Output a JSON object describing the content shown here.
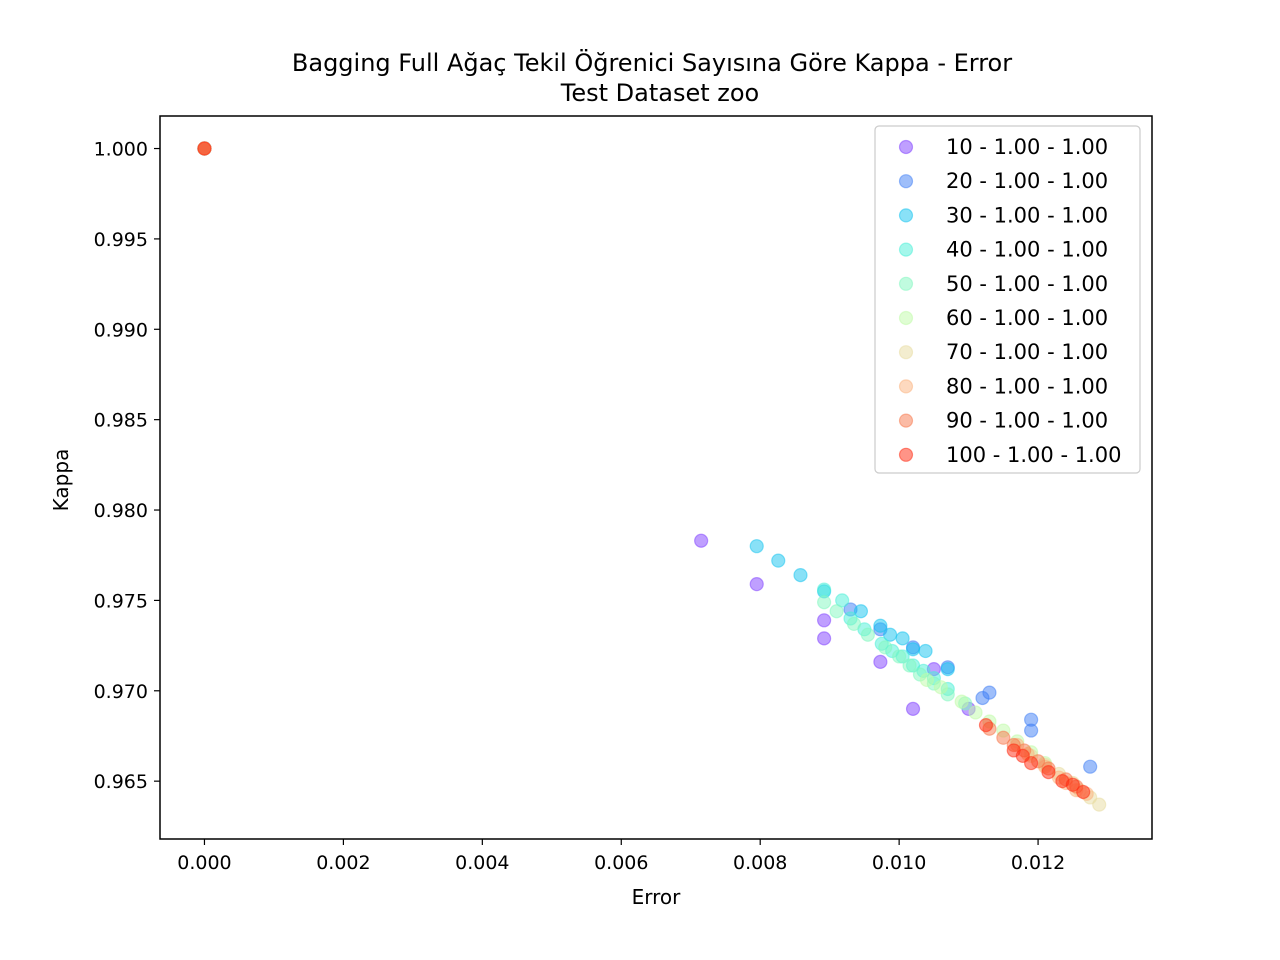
{
  "chart_data": {
    "type": "scatter",
    "title": "Bagging Full Ağaç Tekil Öğrenici Sayısına Göre Kappa - Error",
    "subtitle": "Test Dataset  zoo",
    "xlabel": "Error",
    "ylabel": "Kappa",
    "xlim": [
      -0.00064,
      0.01364
    ],
    "ylim": [
      0.9618,
      1.0018
    ],
    "x_ticks": [
      "0.000",
      "0.002",
      "0.004",
      "0.006",
      "0.008",
      "0.010",
      "0.012"
    ],
    "y_ticks": [
      "0.965",
      "0.970",
      "0.975",
      "0.980",
      "0.985",
      "0.990",
      "0.995",
      "1.000"
    ],
    "grid": false,
    "legend_position": "top-right",
    "series": [
      {
        "name": "10 - 1.00 - 1.00",
        "color": "#8040ff",
        "points": [
          [
            0.0,
            1.0
          ],
          [
            0.00715,
            0.9783
          ],
          [
            0.00795,
            0.9759
          ],
          [
            0.00892,
            0.9739
          ],
          [
            0.00892,
            0.9729
          ],
          [
            0.00973,
            0.9716
          ],
          [
            0.0102,
            0.969
          ],
          [
            0.0105,
            0.9712
          ],
          [
            0.011,
            0.969
          ]
        ]
      },
      {
        "name": "20 - 1.00 - 1.00",
        "color": "#3d7df5",
        "points": [
          [
            0.0,
            1.0
          ],
          [
            0.0093,
            0.9745
          ],
          [
            0.00973,
            0.9734
          ],
          [
            0.0102,
            0.9724
          ],
          [
            0.0107,
            0.9713
          ],
          [
            0.0112,
            0.9696
          ],
          [
            0.0113,
            0.9699
          ],
          [
            0.0119,
            0.9684
          ],
          [
            0.0119,
            0.9678
          ],
          [
            0.01275,
            0.9658
          ]
        ]
      },
      {
        "name": "30 - 1.00 - 1.00",
        "color": "#14c4f0",
        "points": [
          [
            0.0,
            1.0
          ],
          [
            0.00795,
            0.978
          ],
          [
            0.00826,
            0.9772
          ],
          [
            0.00858,
            0.9764
          ],
          [
            0.00892,
            0.9755
          ],
          [
            0.00945,
            0.9744
          ],
          [
            0.00973,
            0.9736
          ],
          [
            0.00987,
            0.9731
          ],
          [
            0.01005,
            0.9729
          ],
          [
            0.0102,
            0.9723
          ],
          [
            0.01038,
            0.9722
          ],
          [
            0.0107,
            0.9712
          ]
        ]
      },
      {
        "name": "40 - 1.00 - 1.00",
        "color": "#4af0d8",
        "points": [
          [
            0.0,
            1.0
          ],
          [
            0.00892,
            0.9756
          ],
          [
            0.00918,
            0.975
          ],
          [
            0.0093,
            0.974
          ],
          [
            0.0095,
            0.9734
          ],
          [
            0.00975,
            0.9726
          ],
          [
            0.0099,
            0.9722
          ],
          [
            0.01005,
            0.9719
          ],
          [
            0.0102,
            0.9714
          ],
          [
            0.01035,
            0.9711
          ],
          [
            0.0105,
            0.9707
          ],
          [
            0.0107,
            0.9701
          ]
        ]
      },
      {
        "name": "50 - 1.00 - 1.00",
        "color": "#82f8c0",
        "points": [
          [
            0.0,
            1.0
          ],
          [
            0.00892,
            0.9749
          ],
          [
            0.0091,
            0.9744
          ],
          [
            0.00935,
            0.9737
          ],
          [
            0.00955,
            0.9731
          ],
          [
            0.0098,
            0.9724
          ],
          [
            0.01,
            0.9719
          ],
          [
            0.01015,
            0.9714
          ],
          [
            0.0103,
            0.9709
          ],
          [
            0.0105,
            0.9704
          ],
          [
            0.0107,
            0.9698
          ],
          [
            0.01095,
            0.9693
          ]
        ]
      },
      {
        "name": "60 - 1.00 - 1.00",
        "color": "#c0fba8",
        "points": [
          [
            0.0,
            1.0
          ],
          [
            0.0104,
            0.9706
          ],
          [
            0.0106,
            0.9702
          ],
          [
            0.0109,
            0.9694
          ],
          [
            0.0111,
            0.9688
          ],
          [
            0.0113,
            0.9683
          ],
          [
            0.0115,
            0.9678
          ],
          [
            0.0117,
            0.9672
          ],
          [
            0.0119,
            0.9666
          ],
          [
            0.0121,
            0.966
          ]
        ]
      },
      {
        "name": "70 - 1.00 - 1.00",
        "color": "#e8dca0",
        "points": [
          [
            0.0,
            1.0
          ],
          [
            0.0119,
            0.9664
          ],
          [
            0.0121,
            0.9659
          ],
          [
            0.0123,
            0.9654
          ],
          [
            0.0125,
            0.9649
          ],
          [
            0.0126,
            0.9645
          ],
          [
            0.01275,
            0.9641
          ],
          [
            0.01288,
            0.9637
          ]
        ]
      },
      {
        "name": "80 - 1.00 - 1.00",
        "color": "#fbb380",
        "points": [
          [
            0.0,
            1.0
          ],
          [
            0.0117,
            0.967
          ],
          [
            0.01185,
            0.9665
          ],
          [
            0.0121,
            0.9658
          ],
          [
            0.0123,
            0.9652
          ],
          [
            0.0124,
            0.9649
          ],
          [
            0.01255,
            0.9645
          ],
          [
            0.0127,
            0.9643
          ]
        ]
      },
      {
        "name": "90 - 1.00 - 1.00",
        "color": "#f8774c",
        "points": [
          [
            0.0,
            1.0
          ],
          [
            0.0113,
            0.9679
          ],
          [
            0.0115,
            0.9674
          ],
          [
            0.01165,
            0.967
          ],
          [
            0.0118,
            0.9667
          ],
          [
            0.012,
            0.9661
          ],
          [
            0.01215,
            0.9657
          ],
          [
            0.0124,
            0.9651
          ],
          [
            0.01255,
            0.9647
          ]
        ]
      },
      {
        "name": "100 - 1.00 - 1.00",
        "color": "#ff2a10",
        "points": [
          [
            0.0,
            1.0
          ],
          [
            0.01125,
            0.9681
          ],
          [
            0.01165,
            0.9667
          ],
          [
            0.01178,
            0.9664
          ],
          [
            0.0119,
            0.966
          ],
          [
            0.01215,
            0.9655
          ],
          [
            0.01235,
            0.965
          ],
          [
            0.0125,
            0.9648
          ],
          [
            0.01265,
            0.9644
          ]
        ]
      }
    ]
  }
}
